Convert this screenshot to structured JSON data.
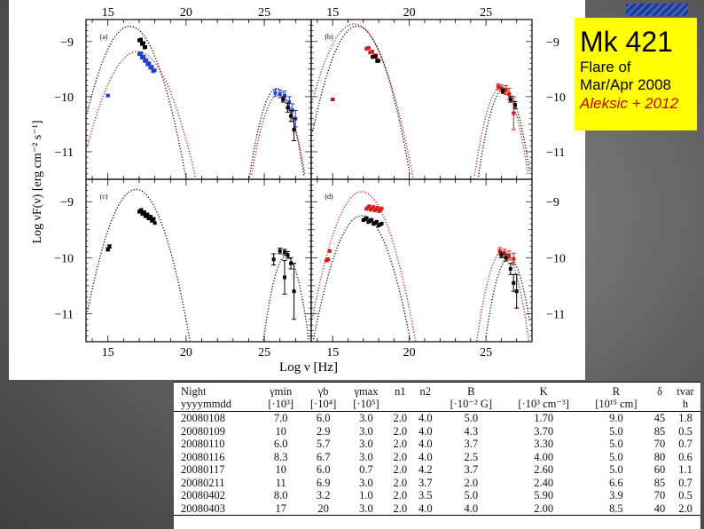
{
  "figure": {
    "top_ticks": [
      "15",
      "20",
      "25"
    ],
    "bottom_ticks": [
      "15",
      "20",
      "25"
    ],
    "left_y_ticks": [
      "−9",
      "−10",
      "−11"
    ],
    "right_y_ticks": [
      "−9",
      "−10",
      "−11"
    ],
    "ylabel": "Log νF(ν) [erg cm⁻² s⁻¹]",
    "xlabel": "Log ν [Hz]",
    "panels": [
      "(a)",
      "(b)",
      "(c)",
      "(d)"
    ]
  },
  "callout": {
    "title": "Mk 421",
    "line1": "Flare  of",
    "line2": "Mar/Apr 2008",
    "citation": "Aleksic + 2012"
  },
  "colors": {
    "callout_bg": "#ffff00",
    "citation": "#cc0000",
    "blue_data": "#1f3fd6",
    "red_data": "#e01818"
  },
  "table": {
    "headers_top": [
      "Night",
      "γmin",
      "γb",
      "γmax",
      "n1",
      "n2",
      "B",
      "K",
      "R",
      "δ",
      "tvar"
    ],
    "headers_units": [
      "yyyymmdd",
      "[·10³]",
      "[·10⁴]",
      "[·10⁵]",
      "",
      "",
      "[·10⁻² G]",
      "[·10³ cm⁻³]",
      "[10¹⁵ cm]",
      "",
      "h"
    ],
    "rows": [
      [
        "20080108",
        "7.0",
        "6.0",
        "3.0",
        "2.0",
        "4.0",
        "5.0",
        "1.70",
        "9.0",
        "45",
        "1.8"
      ],
      [
        "20080109",
        "10",
        "2.9",
        "3.0",
        "2.0",
        "4.0",
        "4.3",
        "3.70",
        "5.0",
        "85",
        "0.5"
      ],
      [
        "20080110",
        "6.0",
        "5.7",
        "3.0",
        "2.0",
        "4.0",
        "3.7",
        "3.30",
        "5.0",
        "70",
        "0.7"
      ],
      [
        "20080116",
        "8.3",
        "6.7",
        "3.0",
        "2.0",
        "4.0",
        "2.5",
        "4.00",
        "5.0",
        "80",
        "0.6"
      ],
      [
        "20080117",
        "10",
        "6.0",
        "0.7",
        "2.0",
        "4.2",
        "3.7",
        "2.60",
        "5.0",
        "60",
        "1.1"
      ],
      [
        "20080211",
        "11",
        "6.9",
        "3.0",
        "2.0",
        "3.7",
        "2.0",
        "2.40",
        "6.6",
        "85",
        "0.7"
      ],
      [
        "20080402",
        "8.0",
        "3.2",
        "1.0",
        "2.0",
        "3.5",
        "5.0",
        "5.90",
        "3.9",
        "70",
        "0.5"
      ],
      [
        "20080403",
        "17",
        "20",
        "3.0",
        "2.0",
        "4.0",
        "4.0",
        "2.00",
        "8.5",
        "40",
        "2.0"
      ]
    ]
  }
}
